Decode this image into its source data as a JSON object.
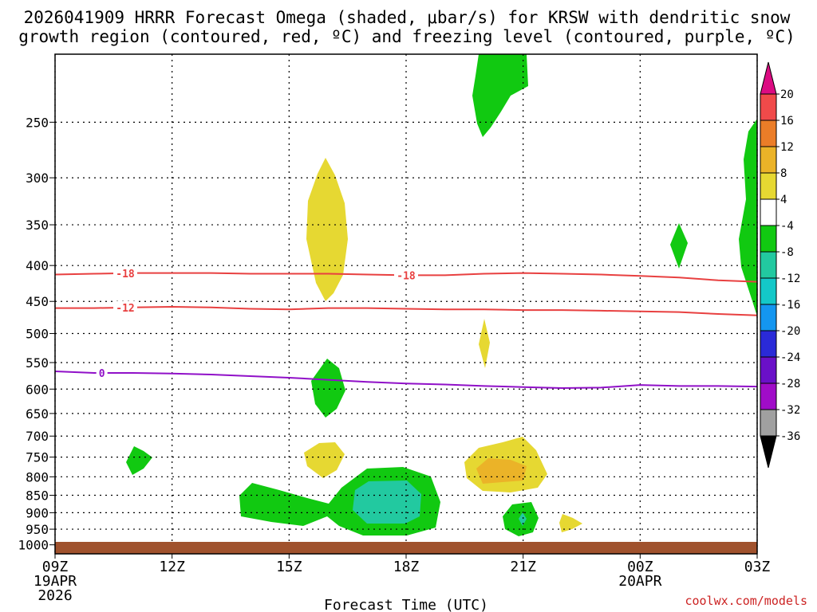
{
  "chart_data": {
    "type": "contour",
    "title_line1": "2026041909 HRRR Forecast Omega (shaded, μbar/s) for KRSW with dendritic snow",
    "title_line2": "growth region (contoured, red, ºC) and freezing level (contoured, purple, ºC)",
    "xlabel": "Forecast Time (UTC)",
    "ylabel": "",
    "x_ticks": [
      {
        "hour": 0,
        "label": "09Z",
        "sub": [
          "19APR",
          "2026"
        ]
      },
      {
        "hour": 3,
        "label": "12Z",
        "sub": []
      },
      {
        "hour": 6,
        "label": "15Z",
        "sub": []
      },
      {
        "hour": 9,
        "label": "18Z",
        "sub": []
      },
      {
        "hour": 12,
        "label": "21Z",
        "sub": []
      },
      {
        "hour": 15,
        "label": "00Z",
        "sub": [
          "20APR"
        ]
      },
      {
        "hour": 18,
        "label": "03Z",
        "sub": []
      }
    ],
    "y_ticks": [
      250,
      300,
      350,
      400,
      450,
      500,
      550,
      600,
      650,
      700,
      750,
      800,
      850,
      900,
      950,
      1000
    ],
    "xlim_hours": [
      0,
      18
    ],
    "ylim_hPa": [
      200,
      1030
    ],
    "y_scale": "log (pressure)",
    "colorbar": {
      "ticks": [
        "20",
        "16",
        "12",
        "8",
        "4",
        "-4",
        "-8",
        "-12",
        "-16",
        "-20",
        "-24",
        "-28",
        "-32",
        "-36"
      ],
      "colors": [
        "#dc0b82",
        "#f04a4a",
        "#eb7d28",
        "#ebb328",
        "#e6d832",
        "#ffffff",
        "#11c911",
        "#22c9a0",
        "#14c8c8",
        "#1496f0",
        "#2a2ad8",
        "#6a10c8",
        "#a00cc8",
        "#a0a0a0",
        "#000000"
      ]
    },
    "series": [
      {
        "name": "-18C isotherm",
        "color": "#e84040",
        "label": "-18",
        "hours": [
          0,
          1,
          2,
          3,
          4,
          5,
          6,
          7,
          8,
          9,
          10,
          11,
          12,
          13,
          14,
          15,
          16,
          17,
          18
        ],
        "values": [
          412,
          411,
          410,
          410,
          410,
          411,
          411,
          411,
          412,
          413,
          413,
          411,
          410,
          411,
          412,
          414,
          416,
          420,
          422
        ]
      },
      {
        "name": "-12C isotherm",
        "color": "#e84040",
        "label": "-12",
        "hours": [
          0,
          1,
          2,
          3,
          4,
          5,
          6,
          7,
          8,
          9,
          10,
          11,
          12,
          13,
          14,
          15,
          16,
          17,
          18
        ],
        "values": [
          460,
          460,
          459,
          458,
          459,
          461,
          462,
          460,
          460,
          461,
          462,
          462,
          463,
          463,
          464,
          465,
          466,
          469,
          471
        ]
      },
      {
        "name": "0C freezing level",
        "color": "#9010c8",
        "label": "0",
        "hours": [
          0,
          1,
          2,
          3,
          4,
          5,
          6,
          7,
          8,
          9,
          10,
          11,
          12,
          13,
          14,
          15,
          16,
          17,
          18
        ],
        "values": [
          566,
          569,
          569,
          570,
          572,
          575,
          578,
          582,
          586,
          589,
          591,
          594,
          596,
          598,
          597,
          592,
          594,
          594,
          595
        ]
      }
    ],
    "shaded_regions": [
      {
        "bin": "-8 to -4",
        "color": "#11c911",
        "center_hour": 11.4,
        "center_hPa": 230
      },
      {
        "bin": "-8 to -4",
        "color": "#11c911",
        "center_hour": 7.7,
        "center_hPa": 610
      },
      {
        "bin": "-8 to -4",
        "color": "#11c911",
        "center_hour": 1.9,
        "center_hPa": 765
      },
      {
        "bin": "-8 to -4",
        "color": "#11c911",
        "center_hour": 6.2,
        "center_hPa": 910
      },
      {
        "bin": "-8 to -4",
        "color": "#11c911",
        "center_hour": 9.2,
        "center_hPa": 890
      },
      {
        "bin": "-12 to -8",
        "color": "#22c9a0",
        "center_hour": 9.2,
        "center_hPa": 890
      },
      {
        "bin": "-8 to -4",
        "color": "#11c911",
        "center_hour": 12.0,
        "center_hPa": 945
      },
      {
        "bin": "-12 to -8",
        "color": "#22c9a0",
        "center_hour": 12.0,
        "center_hPa": 945
      },
      {
        "bin": "-8 to -4",
        "color": "#11c911",
        "center_hour": 15.9,
        "center_hPa": 385
      },
      {
        "bin": "-8 to -4",
        "color": "#11c911",
        "center_hour": 17.8,
        "center_hPa": 380
      },
      {
        "bin": "4 to 8",
        "color": "#e6d832",
        "center_hour": 7.4,
        "center_hPa": 360
      },
      {
        "bin": "4 to 8",
        "color": "#e6d832",
        "center_hour": 7.7,
        "center_hPa": 765
      },
      {
        "bin": "4 to 8",
        "color": "#e6d832",
        "center_hour": 11.0,
        "center_hPa": 545
      },
      {
        "bin": "4 to 8",
        "color": "#e6d832",
        "center_hour": 11.0,
        "center_hPa": 790
      },
      {
        "bin": "8 to 12",
        "color": "#ebb328",
        "center_hour": 11.3,
        "center_hPa": 800
      },
      {
        "bin": "4 to 8",
        "color": "#e6d832",
        "center_hour": 13.2,
        "center_hPa": 950
      }
    ],
    "ground_color": "#a0522d"
  },
  "credit": "coolwx.com/models",
  "colors": {
    "frame": "#000000",
    "credit": "#cc2222",
    "grid": "#000000"
  }
}
